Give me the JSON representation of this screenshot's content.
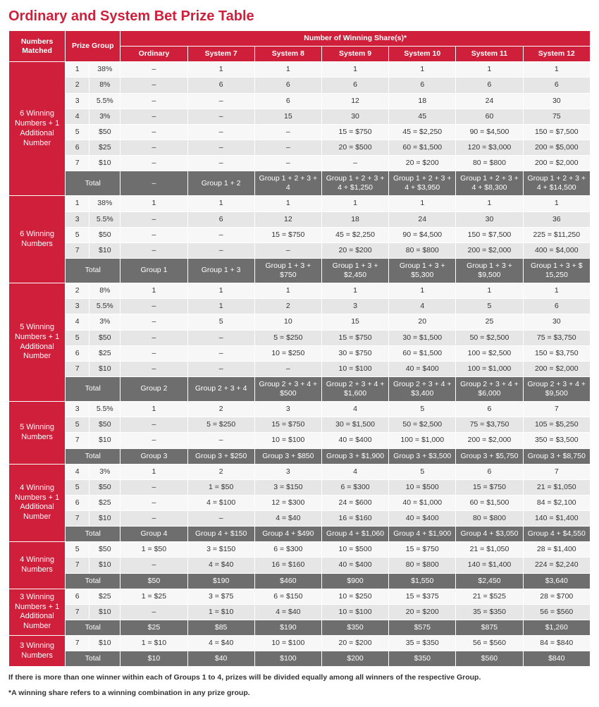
{
  "title": "Ordinary and System Bet Prize Table",
  "colors": {
    "brand": "#cf1f3a",
    "total_row": "#6e6e6e",
    "stripe_light": "#f7f7f7",
    "stripe_grey": "#e6e6e6"
  },
  "font": {
    "family": "Arial",
    "title_size_pt": 20,
    "body_size_pt": 10.5
  },
  "headers": {
    "numbers_matched": "Numbers Matched",
    "prize_group": "Prize Group",
    "winning_shares": "Number of Winning Share(s)*",
    "systems": [
      "Ordinary",
      "System 7",
      "System 8",
      "System 9",
      "System 10",
      "System 11",
      "System 12"
    ]
  },
  "dash": "–",
  "footnotes": [
    "If there is more than one winner within each of Groups 1 to 4, prizes will be divided equally among all winners of the respective Group.",
    "*A winning share refers to a winning combination in any prize group."
  ],
  "sections": [
    {
      "label": "6 Winning Numbers  + 1 Additional Number",
      "rows": [
        {
          "pg": [
            "1",
            "38%"
          ],
          "cells": [
            "–",
            "1",
            "1",
            "1",
            "1",
            "1",
            "1"
          ]
        },
        {
          "pg": [
            "2",
            "8%"
          ],
          "cells": [
            "–",
            "6",
            "6",
            "6",
            "6",
            "6",
            "6"
          ]
        },
        {
          "pg": [
            "3",
            "5.5%"
          ],
          "cells": [
            "–",
            "–",
            "6",
            "12",
            "18",
            "24",
            "30"
          ]
        },
        {
          "pg": [
            "4",
            "3%"
          ],
          "cells": [
            "–",
            "–",
            "15",
            "30",
            "45",
            "60",
            "75"
          ]
        },
        {
          "pg": [
            "5",
            "$50"
          ],
          "cells": [
            "–",
            "–",
            "–",
            "15 = $750",
            "45 = $2,250",
            "90 = $4,500",
            "150 = $7,500"
          ]
        },
        {
          "pg": [
            "6",
            "$25"
          ],
          "cells": [
            "–",
            "–",
            "–",
            "20 = $500",
            "60 = $1,500",
            "120 = $3,000",
            "200 = $5,000"
          ]
        },
        {
          "pg": [
            "7",
            "$10"
          ],
          "cells": [
            "–",
            "–",
            "–",
            "–",
            "20 = $200",
            "80 = $800",
            "200 = $2,000"
          ]
        }
      ],
      "total": [
        "–",
        "Group 1 + 2",
        "Group 1 + 2 + 3 + 4",
        "Group 1 + 2 + 3 + 4 + $1,250",
        "Group 1 + 2 + 3 + 4 + $3,950",
        "Group 1 + 2 + 3 + 4 + $8,300",
        "Group 1 + 2 + 3 + 4 + $14,500"
      ]
    },
    {
      "label": "6 Winning Numbers",
      "rows": [
        {
          "pg": [
            "1",
            "38%"
          ],
          "cells": [
            "1",
            "1",
            "1",
            "1",
            "1",
            "1",
            "1"
          ]
        },
        {
          "pg": [
            "3",
            "5.5%"
          ],
          "cells": [
            "–",
            "6",
            "12",
            "18",
            "24",
            "30",
            "36"
          ]
        },
        {
          "pg": [
            "5",
            "$50"
          ],
          "cells": [
            "–",
            "–",
            "15 = $750",
            "45 = $2,250",
            "90 = $4,500",
            "150 = $7,500",
            "225 = $11,250"
          ]
        },
        {
          "pg": [
            "7",
            "$10"
          ],
          "cells": [
            "–",
            "–",
            "–",
            "20 = $200",
            "80 = $800",
            "200 = $2,000",
            "400 = $4,000"
          ]
        }
      ],
      "total": [
        "Group 1",
        "Group 1 + 3",
        "Group 1 + 3 + $750",
        "Group 1 + 3 + $2,450",
        "Group 1 + 3 + $5,300",
        "Group 1 + 3 + $9,500",
        "Group 1 + 3 + $ 15,250"
      ]
    },
    {
      "label": "5 Winning Numbers  + 1 Additional Number",
      "rows": [
        {
          "pg": [
            "2",
            "8%"
          ],
          "cells": [
            "1",
            "1",
            "1",
            "1",
            "1",
            "1",
            "1"
          ]
        },
        {
          "pg": [
            "3",
            "5.5%"
          ],
          "cells": [
            "–",
            "1",
            "2",
            "3",
            "4",
            "5",
            "6"
          ]
        },
        {
          "pg": [
            "4",
            "3%"
          ],
          "cells": [
            "–",
            "5",
            "10",
            "15",
            "20",
            "25",
            "30"
          ]
        },
        {
          "pg": [
            "5",
            "$50"
          ],
          "cells": [
            "–",
            "–",
            "5 = $250",
            "15 = $750",
            "30 = $1,500",
            "50 = $2,500",
            "75 = $3,750"
          ]
        },
        {
          "pg": [
            "6",
            "$25"
          ],
          "cells": [
            "–",
            "–",
            "10 = $250",
            "30 = $750",
            "60 = $1,500",
            "100 = $2,500",
            "150 = $3,750"
          ]
        },
        {
          "pg": [
            "7",
            "$10"
          ],
          "cells": [
            "–",
            "–",
            "–",
            "10 = $100",
            "40 = $400",
            "100 = $1,000",
            "200 = $2,000"
          ]
        }
      ],
      "total": [
        "Group 2",
        "Group 2 + 3 + 4",
        "Group 2 + 3 + 4 + $500",
        "Group 2 + 3 + 4 + $1,600",
        "Group 2 + 3 + 4 + $3,400",
        "Group 2 + 3 + 4 + $6,000",
        "Group 2 + 3 + 4 + $9,500"
      ]
    },
    {
      "label": "5 Winning Numbers",
      "rows": [
        {
          "pg": [
            "3",
            "5.5%"
          ],
          "cells": [
            "1",
            "2",
            "3",
            "4",
            "5",
            "6",
            "7"
          ]
        },
        {
          "pg": [
            "5",
            "$50"
          ],
          "cells": [
            "–",
            "5 = $250",
            "15 = $750",
            "30 = $1,500",
            "50 = $2,500",
            "75 = $3,750",
            "105 = $5,250"
          ]
        },
        {
          "pg": [
            "7",
            "$10"
          ],
          "cells": [
            "–",
            "–",
            "10 = $100",
            "40 = $400",
            "100 = $1,000",
            "200 = $2,000",
            "350 = $3,500"
          ]
        }
      ],
      "total": [
        "Group 3",
        "Group 3 + $250",
        "Group 3 + $850",
        "Group 3 + $1,900",
        "Group 3 + $3,500",
        "Group 3 + $5,750",
        "Group 3 + $8,750"
      ]
    },
    {
      "label": "4 Winning Numbers  + 1 Additional Number",
      "rows": [
        {
          "pg": [
            "4",
            "3%"
          ],
          "cells": [
            "1",
            "2",
            "3",
            "4",
            "5",
            "6",
            "7"
          ]
        },
        {
          "pg": [
            "5",
            "$50"
          ],
          "cells": [
            "–",
            "1 = $50",
            "3 = $150",
            "6 = $300",
            "10 = $500",
            "15 = $750",
            "21 = $1,050"
          ]
        },
        {
          "pg": [
            "6",
            "$25"
          ],
          "cells": [
            "–",
            "4 = $100",
            "12 = $300",
            "24 = $600",
            "40 = $1,000",
            "60 = $1,500",
            "84 = $2,100"
          ]
        },
        {
          "pg": [
            "7",
            "$10"
          ],
          "cells": [
            "–",
            "–",
            "4 = $40",
            "16 = $160",
            "40 = $400",
            "80 = $800",
            "140 = $1,400"
          ]
        }
      ],
      "total": [
        "Group 4",
        "Group 4 + $150",
        "Group 4 + $490",
        "Group 4 + $1,060",
        "Group 4 + $1,900",
        "Group 4 + $3,050",
        "Group 4 + $4,550"
      ]
    },
    {
      "label": "4 Winning Numbers",
      "rows": [
        {
          "pg": [
            "5",
            "$50"
          ],
          "cells": [
            "1 = $50",
            "3 = $150",
            "6 = $300",
            "10 = $500",
            "15 = $750",
            "21 = $1,050",
            "28 = $1,400"
          ]
        },
        {
          "pg": [
            "7",
            "$10"
          ],
          "cells": [
            "–",
            "4 = $40",
            "16 = $160",
            "40 = $400",
            "80 = $800",
            "140 = $1,400",
            "224 = $2,240"
          ]
        }
      ],
      "total": [
        "$50",
        "$190",
        "$460",
        "$900",
        "$1,550",
        "$2,450",
        "$3,640"
      ]
    },
    {
      "label": "3 Winning Numbers  + 1 Additional Number",
      "rows": [
        {
          "pg": [
            "6",
            "$25"
          ],
          "cells": [
            "1 = $25",
            "3 = $75",
            "6 = $150",
            "10 = $250",
            "15 = $375",
            "21 = $525",
            "28 = $700"
          ]
        },
        {
          "pg": [
            "7",
            "$10"
          ],
          "cells": [
            "–",
            "1 = $10",
            "4 = $40",
            "10 = $100",
            "20 = $200",
            "35 = $350",
            "56 = $560"
          ]
        }
      ],
      "total": [
        "$25",
        "$85",
        "$190",
        "$350",
        "$575",
        "$875",
        "$1,260"
      ]
    },
    {
      "label": "3 Winning Numbers",
      "rows": [
        {
          "pg": [
            "7",
            "$10"
          ],
          "cells": [
            "1 = $10",
            "4 = $40",
            "10 = $100",
            "20 = $200",
            "35 = $350",
            "56 = $560",
            "84 = $840"
          ]
        }
      ],
      "total": [
        "$10",
        "$40",
        "$100",
        "$200",
        "$350",
        "$560",
        "$840"
      ]
    }
  ],
  "total_label": "Total"
}
